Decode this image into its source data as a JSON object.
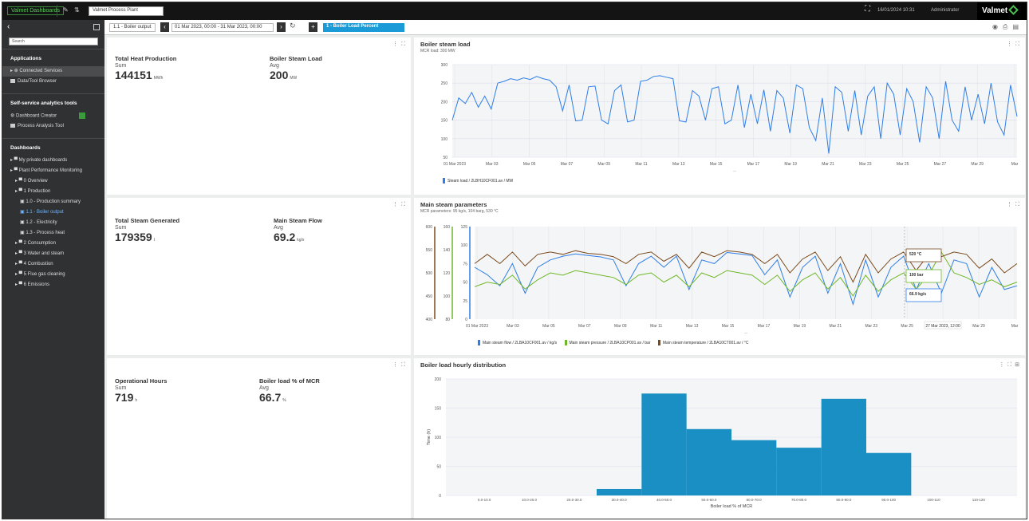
{
  "topbar": {
    "app_name": "Valmet Dashboards",
    "site": "Valmet Process Plant",
    "time": "16/01/2024 10:31",
    "user": "Administrator",
    "logo": "Valmet"
  },
  "sidebar": {
    "search_placeholder": "Search",
    "sections": {
      "applications": "Applications",
      "self_service": "Self-service analytics tools",
      "dashboards": "Dashboards"
    },
    "applications": [
      {
        "label": "Connected Services"
      },
      {
        "label": "Data/Tool Browser"
      }
    ],
    "tools": [
      {
        "label": "Dashboard Creator"
      },
      {
        "label": "Process Analysis Tool"
      }
    ],
    "dashboards": [
      {
        "label": "My private dashboards",
        "level": 1
      },
      {
        "label": "Plant Performance Monitoring",
        "level": 1
      },
      {
        "label": "0 Overview",
        "level": 2
      },
      {
        "label": "1 Production",
        "level": 2
      },
      {
        "label": "1.0 - Production summary",
        "level": 3
      },
      {
        "label": "1.1 - Boiler output",
        "level": 3,
        "selected": true
      },
      {
        "label": "1.2 - Electricity",
        "level": 3
      },
      {
        "label": "1.3 - Process heat",
        "level": 3
      },
      {
        "label": "2 Consumption",
        "level": 2
      },
      {
        "label": "3 Water and steam",
        "level": 2
      },
      {
        "label": "4 Combustion",
        "level": 2
      },
      {
        "label": "5 Flue gas cleaning",
        "level": 2
      },
      {
        "label": "6 Emissions",
        "level": 2
      }
    ]
  },
  "subbar": {
    "crumb": "1.1 - Boiler output",
    "range": "01 Mar 2023, 00:00 - 31 Mar 2023, 00:00",
    "filter": "1 - Boiler Load Percent"
  },
  "kpis": [
    {
      "title": "Total Heat Production",
      "agg": "Sum",
      "value": "144151",
      "unit": "MWh"
    },
    {
      "title": "Boiler Steam Load",
      "agg": "Avg",
      "value": "200",
      "unit": "MW"
    },
    {
      "title": "Total Steam Generated",
      "agg": "Sum",
      "value": "179359",
      "unit": "t"
    },
    {
      "title": "Main Steam Flow",
      "agg": "Avg",
      "value": "69.2",
      "unit": "kg/s"
    },
    {
      "title": "Operational Hours",
      "agg": "Sum",
      "value": "719",
      "unit": "h"
    },
    {
      "title": "Boiler load % of MCR",
      "agg": "Avg",
      "value": "66.7",
      "unit": "%"
    }
  ],
  "charts": {
    "steam_load": {
      "title": "Boiler steam load",
      "subtitle": "MCR load: 300 MW",
      "legend": "Steam load / 2LBH10CF001.av / MW",
      "color": "#2f7ee8"
    },
    "main_steam": {
      "title": "Main steam parameters",
      "subtitle": "MCR parameters: 95 kg/s, 104 barg, 530 °C",
      "legend": [
        {
          "label": "Main steam flow / 2LBA10CF001.av / kg/s",
          "color": "#2f7ee8"
        },
        {
          "label": "Main steam pressure / 2LBA10CP001.av / bar",
          "color": "#6fb82a"
        },
        {
          "label": "Main steam temperature / 2LBA10CT001.av / °C",
          "color": "#7a4a1e"
        }
      ],
      "tooltip_date": "27 Mar 2023, 12:00",
      "tooltip_values": [
        "520 °C",
        "100 bar",
        "66.9 kg/s"
      ]
    },
    "histogram": {
      "title": "Boiler load hourly distribution",
      "color": "#1a8fc4"
    }
  },
  "chart_data": [
    {
      "type": "line",
      "title": "Boiler steam load",
      "ylim": [
        50,
        300
      ],
      "yticks": [
        50,
        100,
        150,
        200,
        250,
        300
      ],
      "xticks": [
        "01 Mar 2023",
        "Mar 03",
        "Mar 05",
        "Mar 07",
        "Mar 09",
        "Mar 11",
        "Mar 13",
        "Mar 15",
        "Mar 17",
        "Mar 19",
        "Mar 21",
        "Mar 23",
        "Mar 25",
        "Mar 27",
        "Mar 29",
        "Mar"
      ],
      "series": [
        {
          "name": "Steam load / 2LBH10CF001.av / MW",
          "values": [
            150,
            210,
            195,
            225,
            185,
            215,
            180,
            250,
            255,
            262,
            258,
            264,
            260,
            268,
            262,
            258,
            240,
            175,
            245,
            148,
            150,
            240,
            242,
            150,
            140,
            230,
            245,
            145,
            150,
            255,
            258,
            268,
            270,
            266,
            262,
            148,
            145,
            230,
            215,
            150,
            235,
            240,
            140,
            150,
            245,
            130,
            220,
            140,
            232,
            120,
            230,
            210,
            115,
            245,
            235,
            130,
            95,
            210,
            60,
            240,
            225,
            120,
            230,
            110,
            215,
            240,
            100,
            250,
            220,
            110,
            235,
            200,
            90,
            240,
            210,
            100,
            255,
            150,
            120,
            240,
            150,
            220,
            140,
            250,
            145,
            110,
            245,
            160
          ]
        }
      ]
    },
    {
      "type": "line",
      "title": "Main steam parameters",
      "xticks": [
        "01 Mar 2023",
        "Mar 03",
        "Mar 05",
        "Mar 07",
        "Mar 09",
        "Mar 11",
        "Mar 13",
        "Mar 15",
        "Mar 17",
        "Mar 19",
        "Mar 21",
        "Mar 23",
        "Mar 25",
        "Mar 27",
        "Mar 29",
        "Mar"
      ],
      "y_axes": [
        {
          "label": "°C",
          "ticks": [
            400,
            450,
            500,
            550,
            600
          ]
        },
        {
          "label": "bar",
          "ticks": [
            80,
            100,
            120,
            140,
            160
          ]
        },
        {
          "label": "kg/s",
          "ticks": [
            0,
            25,
            50,
            75,
            100,
            125
          ]
        }
      ],
      "series": [
        {
          "name": "Main steam flow / 2LBA10CF001.av / kg/s",
          "values": [
            70,
            60,
            45,
            75,
            35,
            70,
            80,
            85,
            88,
            86,
            84,
            80,
            45,
            75,
            85,
            70,
            85,
            40,
            80,
            75,
            90,
            88,
            86,
            60,
            80,
            30,
            70,
            85,
            35,
            75,
            20,
            80,
            30,
            70,
            85,
            40,
            75,
            35,
            80,
            75,
            30,
            70,
            40,
            45
          ]
        },
        {
          "name": "Main steam pressure / 2LBA10CP001.av / bar",
          "values": [
            108,
            112,
            110,
            118,
            106,
            114,
            120,
            118,
            122,
            120,
            118,
            116,
            110,
            118,
            120,
            112,
            118,
            108,
            120,
            116,
            122,
            120,
            118,
            110,
            118,
            104,
            114,
            120,
            106,
            116,
            100,
            118,
            104,
            114,
            120,
            106,
            118,
            138,
            120,
            116,
            110,
            114,
            108,
            112
          ]
        },
        {
          "name": "Main steam temperature / 2LBA10CT001.av / °C",
          "values": [
            520,
            540,
            520,
            545,
            515,
            540,
            545,
            540,
            548,
            542,
            540,
            535,
            520,
            540,
            545,
            525,
            540,
            510,
            545,
            535,
            548,
            545,
            540,
            520,
            540,
            500,
            530,
            545,
            505,
            535,
            480,
            540,
            500,
            530,
            545,
            505,
            540,
            535,
            545,
            540,
            510,
            530,
            500,
            520
          ]
        }
      ]
    },
    {
      "type": "bar",
      "title": "Boiler load hourly distribution",
      "categories": [
        "0.0-10.0",
        "10.0-20.0",
        "20.0-30.0",
        "30.0-40.0",
        "40.0-50.0",
        "50.0-60.0",
        "60.0-70.0",
        "70.0-80.0",
        "80.0-90.0",
        "90.0-100",
        "100-110",
        "110-120"
      ],
      "values": [
        0,
        0,
        0,
        11,
        175,
        114,
        95,
        82,
        166,
        73,
        0,
        0
      ],
      "ylim": [
        0,
        200
      ],
      "yticks": [
        0,
        50,
        100,
        150,
        200
      ],
      "xlabel": "Boiler load % of MCR",
      "ylabel": "Time (h)"
    }
  ]
}
